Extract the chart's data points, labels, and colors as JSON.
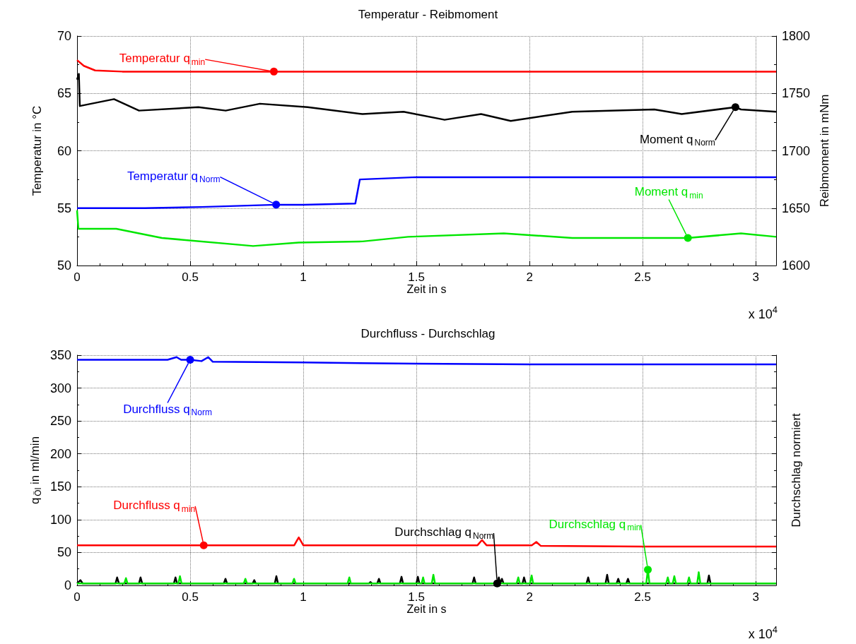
{
  "chart_data": [
    {
      "type": "line",
      "title": "Temperatur - Reibmoment",
      "xlabel": "Zeit in s",
      "ylabel": "Temperatur in °C",
      "y2label": "Reibmoment in mNm",
      "xlim": [
        0,
        3.09
      ],
      "xticks": [
        0,
        0.5,
        1,
        1.5,
        2,
        2.5,
        3
      ],
      "ylim": [
        50,
        70
      ],
      "yticks": [
        50,
        55,
        60,
        65,
        70
      ],
      "y2lim": [
        1600,
        1800
      ],
      "y2ticks": [
        1600,
        1650,
        1700,
        1750,
        1800
      ],
      "grid": true,
      "annotations": [
        "x 10$^{4}$"
      ],
      "series": [
        {
          "name": "Temperatur q$_{min}$",
          "color": "#ff0000",
          "x": [
            0,
            0.03,
            0.08,
            0.2,
            0.5,
            0.87,
            1,
            1.5,
            2,
            2.5,
            3.09
          ],
          "values": [
            67.9,
            67.4,
            67.0,
            66.9,
            66.9,
            66.9,
            66.9,
            66.9,
            66.9,
            66.9,
            66.9
          ]
        },
        {
          "name": "Temperatur q$_{Norm}$",
          "color": "#0000ff",
          "x": [
            0,
            0.3,
            0.55,
            0.88,
            1,
            1.23,
            1.25,
            1.5,
            2,
            2.5,
            3.09
          ],
          "values": [
            55.0,
            55.0,
            55.1,
            55.3,
            55.3,
            55.4,
            57.5,
            57.7,
            57.7,
            57.7,
            57.7
          ]
        },
        {
          "name": "Moment q$_{Norm}$",
          "axis": "y2",
          "color": "#000000",
          "x": [
            0,
            0.008,
            0.0122,
            0.1633,
            0.274,
            0.5362,
            0.6569,
            0.8083,
            1.0197,
            1.2618,
            1.4433,
            1.6247,
            1.7858,
            1.9169,
            2.189,
            2.5515,
            2.6726,
            2.91,
            2.9347,
            3.09
          ],
          "values": [
            1762,
            1767,
            1739,
            1745,
            1735,
            1738,
            1735,
            1741,
            1738,
            1732,
            1734,
            1727,
            1732,
            1726,
            1734,
            1736,
            1732,
            1738,
            1736,
            1734
          ]
        },
        {
          "name": "Moment q$_{min}$",
          "axis": "y2",
          "color": "#00e600",
          "x": [
            0,
            0.006,
            0.1733,
            0.375,
            0.778,
            0.9797,
            1.2618,
            1.4633,
            1.8865,
            2.189,
            2.6925,
            2.7,
            2.9347,
            3.09
          ],
          "values": [
            1648,
            1632,
            1632,
            1624,
            1617,
            1620,
            1621,
            1625,
            1628,
            1624,
            1624,
            1624,
            1628,
            1625
          ]
        }
      ]
    },
    {
      "type": "line",
      "title": "Durchfluss - Durchschlag",
      "xlabel": "Zeit in s",
      "ylabel": "q$_{Öl}$ in ml/min",
      "y2label": "Durchschlag normiert",
      "xlim": [
        0,
        3.09
      ],
      "xticks": [
        0,
        0.5,
        1,
        1.5,
        2,
        2.5,
        3
      ],
      "ylim": [
        0,
        350
      ],
      "yticks": [
        0,
        50,
        100,
        150,
        200,
        250,
        300,
        350
      ],
      "grid": true,
      "annotations": [
        "x 10$^{4}$"
      ],
      "series": [
        {
          "name": "Durchfluss q$_{Norm}$",
          "color": "#0000ff",
          "x": [
            0,
            0.4,
            0.44,
            0.46,
            0.5,
            0.55,
            0.58,
            0.6,
            1,
            1.5,
            2,
            2.5,
            3.09
          ],
          "values": [
            343,
            343,
            347,
            343,
            343,
            341,
            347,
            340,
            339,
            337,
            336,
            336,
            336
          ]
        },
        {
          "name": "Durchfluss q$_{min}$",
          "color": "#ff0000",
          "x": [
            0,
            0.56,
            0.96,
            0.98,
            1,
            1.77,
            1.79,
            1.81,
            2.01,
            2.03,
            2.05,
            2.5,
            3.09
          ],
          "values": [
            61,
            61,
            61,
            73,
            61,
            61,
            69,
            61,
            61,
            66,
            60,
            59,
            59
          ]
        },
        {
          "name": "Durchschlag q$_{Norm}$",
          "color": "#000000",
          "x": [
            0,
            0.0149,
            0.025,
            0.17,
            0.1771,
            0.185,
            0.274,
            0.2807,
            0.288,
            0.428,
            0.4351,
            0.442,
            0.649,
            0.6561,
            0.663,
            0.776,
            0.7833,
            0.79,
            0.874,
            0.881,
            0.888,
            1.29,
            1.2973,
            1.304,
            1.327,
            1.3344,
            1.341,
            1.427,
            1.4342,
            1.441,
            1.5,
            1.5065,
            1.513,
            1.748,
            1.755,
            1.762,
            1.857,
            1.8643,
            1.871,
            1.878,
            1.885,
            1.969,
            1.9757,
            1.983,
            2.252,
            2.2592,
            2.266,
            2.336,
            2.3432,
            2.35,
            2.385,
            2.3921,
            2.399,
            2.428,
            2.4352,
            2.442,
            2.786,
            2.793,
            2.8,
            3.09
          ],
          "values": [
            3,
            8,
            3,
            3,
            12,
            3,
            3,
            12,
            3,
            3,
            12,
            3,
            3,
            10,
            3,
            3,
            8,
            3,
            3,
            14,
            3,
            3,
            5,
            3,
            3,
            10,
            3,
            3,
            13,
            3,
            3,
            13,
            3,
            3,
            12,
            3,
            3,
            12,
            3,
            10,
            3,
            3,
            12,
            3,
            3,
            12,
            3,
            3,
            16,
            3,
            3,
            10,
            3,
            3,
            10,
            3,
            3,
            15,
            3,
            3
          ]
        },
        {
          "name": "Durchschlag q$_{min}$",
          "color": "#00e600",
          "x": [
            0,
            0.209,
            0.2162,
            0.223,
            0.448,
            0.4548,
            0.462,
            0.737,
            0.7441,
            0.751,
            0.952,
            0.9592,
            0.966,
            1.196,
            1.2035,
            1.21,
            1.523,
            1.5296,
            1.536,
            1.568,
            1.575,
            1.582,
            1.943,
            1.9503,
            1.957,
            2.002,
            2.0094,
            2.016,
            2.516,
            2.5231,
            2.53,
            2.604,
            2.6111,
            2.618,
            2.633,
            2.64,
            2.647,
            2.698,
            2.7049,
            2.712,
            2.741,
            2.7479,
            2.755,
            3.09
          ],
          "values": [
            3,
            3,
            11,
            3,
            3,
            14,
            3,
            3,
            10,
            3,
            3,
            10,
            3,
            3,
            12,
            3,
            3,
            12,
            3,
            3,
            16,
            3,
            3,
            12,
            3,
            3,
            15,
            3,
            3,
            24,
            3,
            3,
            12,
            3,
            3,
            14,
            3,
            3,
            12,
            3,
            3,
            20,
            3,
            3
          ]
        }
      ]
    }
  ]
}
